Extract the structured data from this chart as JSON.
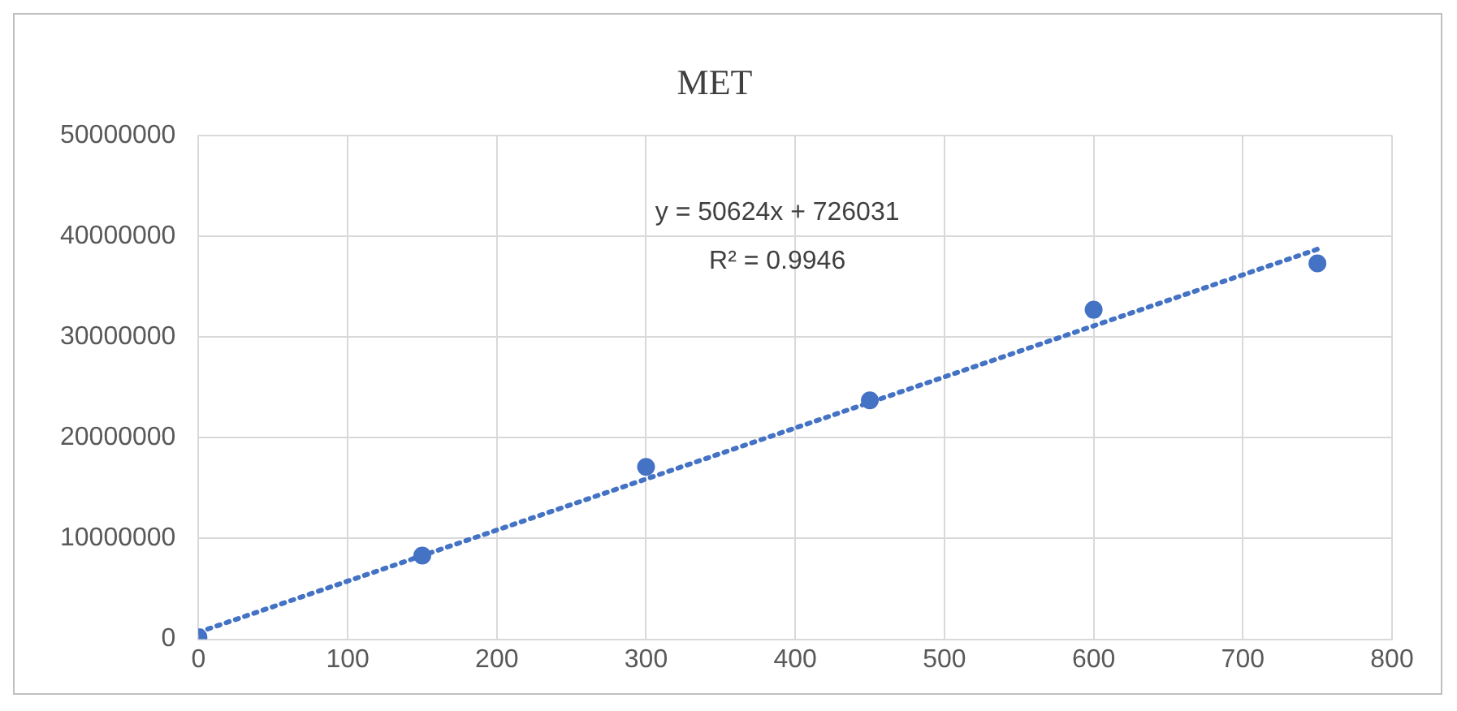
{
  "chart_data": {
    "type": "scatter",
    "title": "MET",
    "x": [
      0,
      150,
      300,
      450,
      600,
      750
    ],
    "series": [
      {
        "type": "scatter",
        "color": "#4472c4",
        "marker": "circle",
        "values": [
          200000,
          8300000,
          17100000,
          23700000,
          32700000,
          37300000
        ]
      },
      {
        "type": "line",
        "color": "#4472c4",
        "marker": "none",
        "line_style": "dotted",
        "x": [
          0,
          750
        ],
        "values": [
          700000,
          38700000
        ]
      }
    ],
    "xlim": [
      0,
      800
    ],
    "xticks": [
      0,
      100,
      200,
      300,
      400,
      500,
      600,
      700,
      800
    ],
    "ylim": [
      0,
      50000000
    ],
    "yticks": [
      0,
      10000000,
      20000000,
      30000000,
      40000000,
      50000000
    ],
    "grid": true,
    "legend": false,
    "annotations": [
      "y = 50624x + 726031",
      "R² = 0.9946"
    ]
  }
}
